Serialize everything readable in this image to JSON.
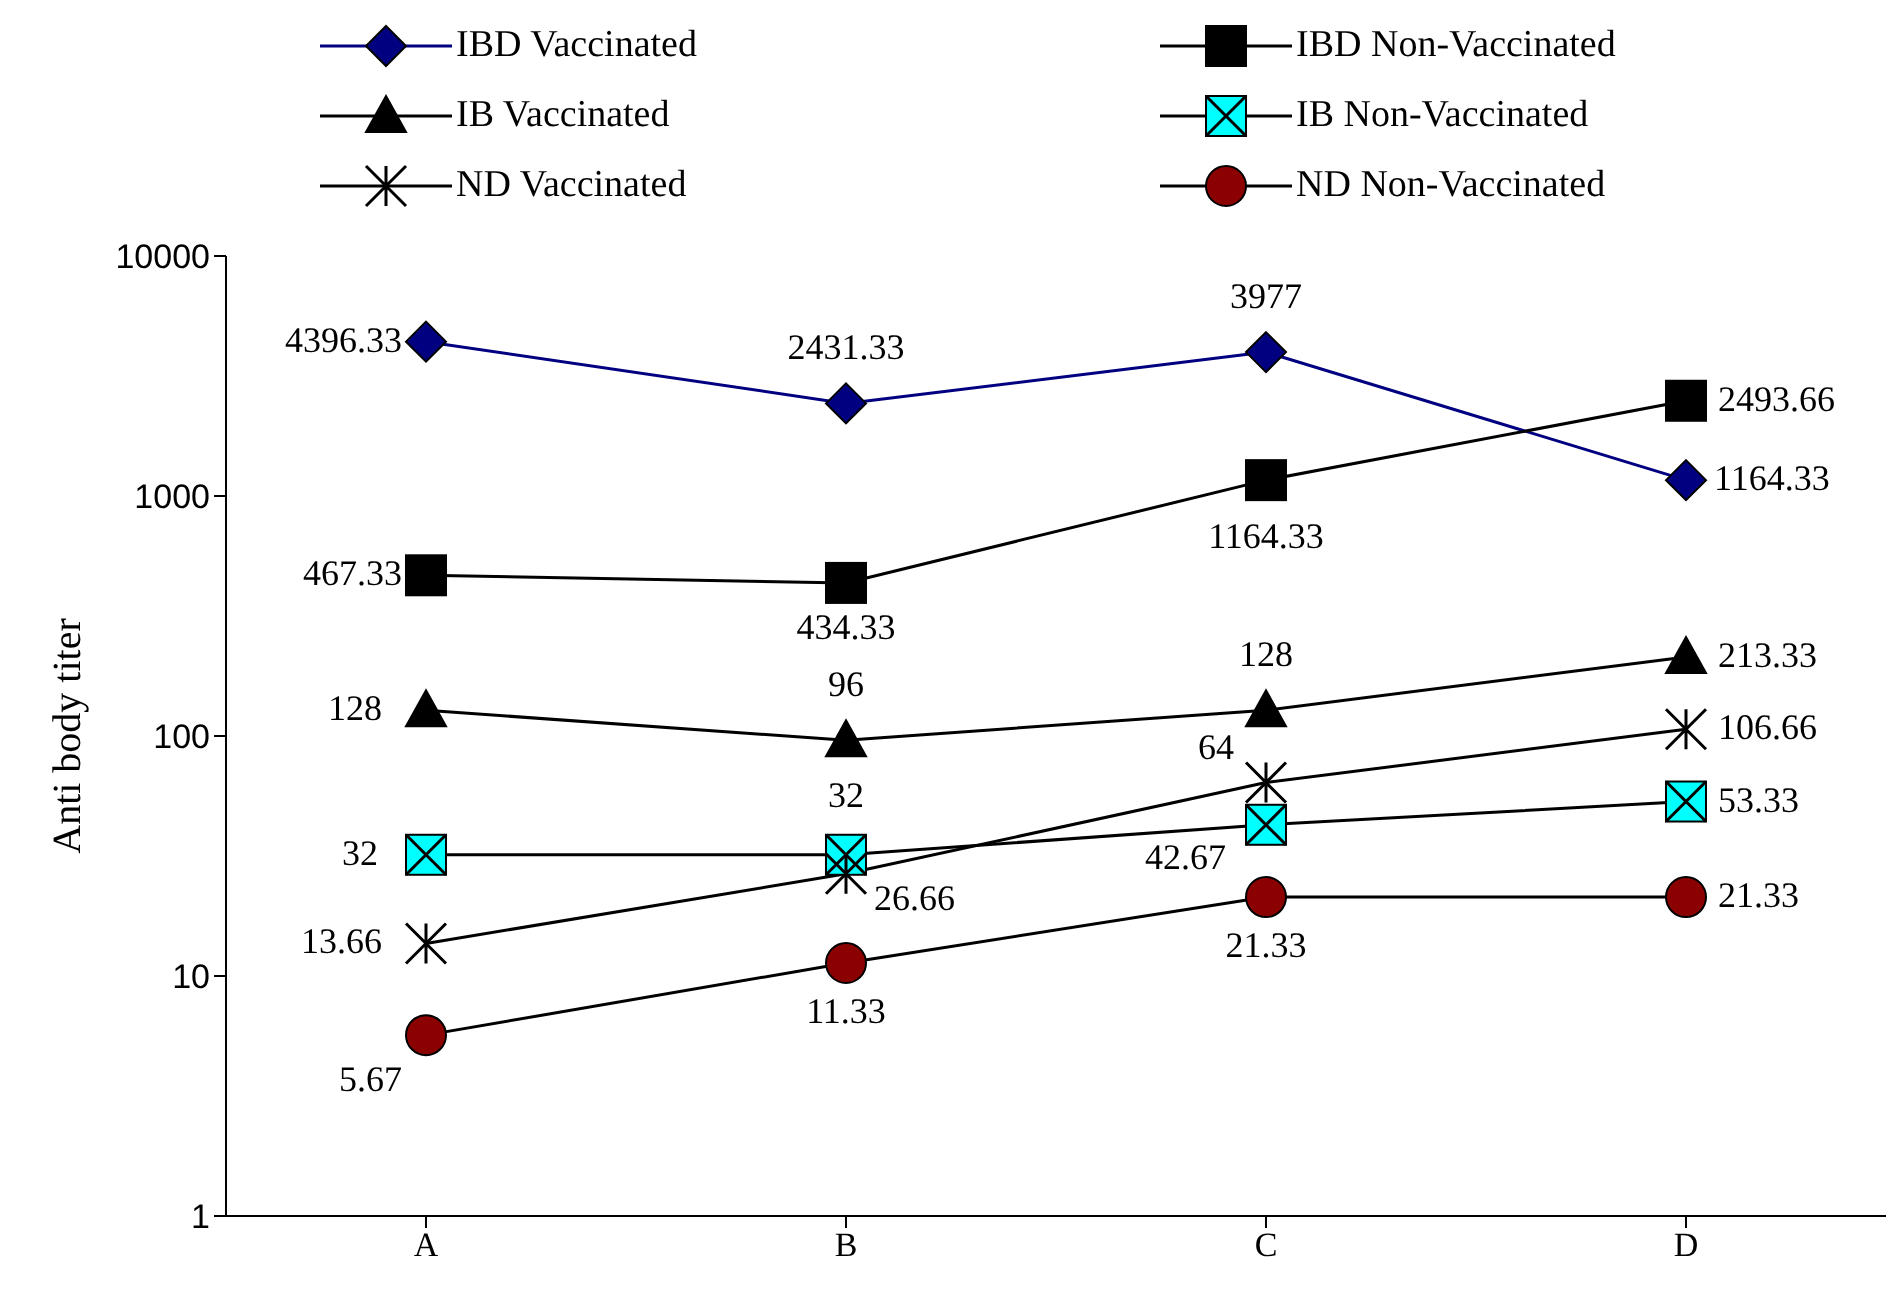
{
  "chart_data": {
    "type": "line",
    "ylabel": "Anti body titer",
    "categories": [
      "A",
      "B",
      "C",
      "D"
    ],
    "log": "y",
    "ylim": [
      1,
      10000
    ],
    "yticks": [
      1,
      10,
      100,
      1000,
      10000
    ],
    "legend": "top",
    "data_labels": true,
    "series": [
      {
        "name": "IBD Vaccinated",
        "color": "#000080",
        "marker": "diamond",
        "values": [
          4396.33,
          2431.33,
          3977,
          1164.33
        ]
      },
      {
        "name": "IBD Non-Vaccinated",
        "color": "#000000",
        "marker": "square",
        "values": [
          467.33,
          434.33,
          1164.33,
          2493.66
        ]
      },
      {
        "name": "IB Vaccinated",
        "color": "#000000",
        "marker": "triangle",
        "values": [
          128,
          96,
          128,
          213.33
        ]
      },
      {
        "name": "IB Non-Vaccinated",
        "color": "#00ffff",
        "marker": "square",
        "values": [
          32,
          32,
          42.67,
          53.33
        ]
      },
      {
        "name": "ND Vaccinated",
        "color": "#000000",
        "marker": "cross",
        "values": [
          13.66,
          26.66,
          64,
          106.66
        ]
      },
      {
        "name": "ND Non-Vaccinated",
        "color": "#8b0000",
        "marker": "circle",
        "values": [
          5.67,
          11.33,
          21.33,
          21.33
        ]
      }
    ]
  }
}
